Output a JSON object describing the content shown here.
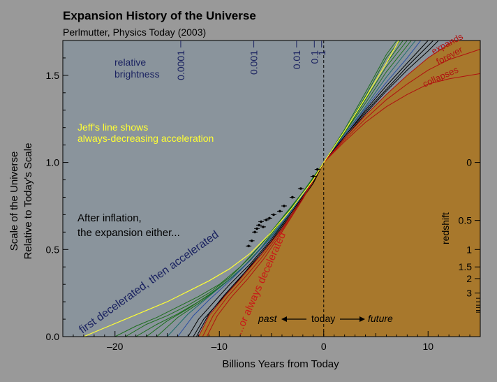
{
  "title": "Expansion History of the Universe",
  "subtitle": "Perlmutter, Physics Today (2003)",
  "colors": {
    "page_background": "#999999",
    "plot_background": "#8a949c",
    "decelerating_fill": "#a8782c",
    "accelerated_text": "#1a2260",
    "decelerated_text": "#c81818",
    "jeff_line": "#ffff33",
    "green": "#1c6e1c",
    "teal": "#1c6a6a",
    "blue": "#2a4ea0",
    "black": "#000000",
    "red": "#b01010"
  },
  "chart_data": {
    "type": "line",
    "xlabel": "Billions Years from Today",
    "ylabel": [
      "Scale of the Universe",
      "Relative to Today's Scale"
    ],
    "xlim": [
      -25,
      15
    ],
    "ylim": [
      0,
      1.7
    ],
    "x_ticks": [
      -20,
      -10,
      0,
      10
    ],
    "x_tick_labels": [
      "–20",
      "–10",
      "0",
      "10"
    ],
    "y_ticks": [
      0,
      0.5,
      1.0,
      1.5
    ],
    "y_tick_labels": [
      "0.0",
      "0.5",
      "1.0",
      "1.5"
    ],
    "today_marker_x": 0,
    "brightness": {
      "label": [
        "relative",
        "brightness"
      ],
      "ticks": [
        {
          "label": "0.0001",
          "x": -13.7
        },
        {
          "label": "0.001",
          "x": -6.7
        },
        {
          "label": "0.01",
          "x": -2.6
        },
        {
          "label": "0.1",
          "x": -0.9
        },
        {
          "label": "1",
          "x": -0.2
        }
      ]
    },
    "redshift": {
      "label": "redshift",
      "ticks": [
        {
          "label": "0",
          "y": 1.0
        },
        {
          "label": "0.5",
          "y": 0.667
        },
        {
          "label": "1",
          "y": 0.5
        },
        {
          "label": "1.5",
          "y": 0.4
        },
        {
          "label": "2",
          "y": 0.333
        },
        {
          "label": "3",
          "y": 0.25
        }
      ],
      "minor_ticks_y": [
        0.22,
        0.2,
        0.18,
        0.167,
        0.15,
        0.14
      ]
    },
    "series": [
      {
        "color_key": "green",
        "points": [
          [
            -20,
            0
          ],
          [
            -18,
            0.06
          ],
          [
            -16,
            0.11
          ],
          [
            -14,
            0.17
          ],
          [
            -12,
            0.23
          ],
          [
            -10,
            0.3
          ],
          [
            -8,
            0.4
          ],
          [
            -6,
            0.53
          ],
          [
            -4,
            0.68
          ],
          [
            -2,
            0.83
          ],
          [
            0,
            1.0
          ],
          [
            2,
            1.19
          ],
          [
            4,
            1.4
          ],
          [
            6,
            1.62
          ],
          [
            7,
            1.7
          ]
        ]
      },
      {
        "color_key": "green",
        "points": [
          [
            -19,
            0
          ],
          [
            -17,
            0.07
          ],
          [
            -15,
            0.12
          ],
          [
            -13,
            0.18
          ],
          [
            -11,
            0.25
          ],
          [
            -9,
            0.34
          ],
          [
            -7,
            0.46
          ],
          [
            -5,
            0.6
          ],
          [
            -3,
            0.75
          ],
          [
            -1,
            0.91
          ],
          [
            0,
            1.0
          ],
          [
            2,
            1.18
          ],
          [
            4,
            1.38
          ],
          [
            6,
            1.6
          ],
          [
            7.3,
            1.7
          ]
        ]
      },
      {
        "color_key": "green",
        "points": [
          [
            -18,
            0
          ],
          [
            -16,
            0.07
          ],
          [
            -14,
            0.13
          ],
          [
            -12,
            0.2
          ],
          [
            -10,
            0.28
          ],
          [
            -8,
            0.38
          ],
          [
            -6,
            0.51
          ],
          [
            -4,
            0.67
          ],
          [
            -2,
            0.82
          ],
          [
            0,
            1.0
          ],
          [
            2,
            1.18
          ],
          [
            4,
            1.37
          ],
          [
            6,
            1.57
          ],
          [
            7.6,
            1.7
          ]
        ]
      },
      {
        "color_key": "green",
        "points": [
          [
            -17,
            0
          ],
          [
            -15,
            0.09
          ],
          [
            -13,
            0.16
          ],
          [
            -11,
            0.24
          ],
          [
            -9,
            0.33
          ],
          [
            -7,
            0.44
          ],
          [
            -5,
            0.57
          ],
          [
            -3,
            0.72
          ],
          [
            -1,
            0.9
          ],
          [
            0,
            1.0
          ],
          [
            2,
            1.17
          ],
          [
            4,
            1.36
          ],
          [
            6,
            1.55
          ],
          [
            8,
            1.7
          ]
        ]
      },
      {
        "color_key": "green",
        "points": [
          [
            -16,
            0
          ],
          [
            -14,
            0.11
          ],
          [
            -12,
            0.19
          ],
          [
            -10,
            0.28
          ],
          [
            -8,
            0.38
          ],
          [
            -6,
            0.51
          ],
          [
            -4,
            0.65
          ],
          [
            -2,
            0.82
          ],
          [
            0,
            1.0
          ],
          [
            2,
            1.17
          ],
          [
            4,
            1.34
          ],
          [
            6,
            1.52
          ],
          [
            8.4,
            1.7
          ]
        ]
      },
      {
        "color_key": "teal",
        "points": [
          [
            -15,
            0
          ],
          [
            -13,
            0.13
          ],
          [
            -11,
            0.23
          ],
          [
            -9,
            0.33
          ],
          [
            -7,
            0.44
          ],
          [
            -5,
            0.58
          ],
          [
            -3,
            0.73
          ],
          [
            -1,
            0.9
          ],
          [
            0,
            1.0
          ],
          [
            2,
            1.16
          ],
          [
            4,
            1.32
          ],
          [
            6,
            1.49
          ],
          [
            8,
            1.64
          ],
          [
            8.8,
            1.7
          ]
        ]
      },
      {
        "color_key": "blue",
        "points": [
          [
            -14,
            0
          ],
          [
            -12.5,
            0.12
          ],
          [
            -11,
            0.21
          ],
          [
            -9,
            0.32
          ],
          [
            -7,
            0.44
          ],
          [
            -5,
            0.57
          ],
          [
            -3,
            0.73
          ],
          [
            -1,
            0.9
          ],
          [
            0,
            1.0
          ],
          [
            2,
            1.16
          ],
          [
            4,
            1.31
          ],
          [
            6,
            1.46
          ],
          [
            8,
            1.6
          ],
          [
            9.3,
            1.7
          ]
        ]
      },
      {
        "color_key": "black",
        "points": [
          [
            -13,
            0
          ],
          [
            -12,
            0.1
          ],
          [
            -10.5,
            0.2
          ],
          [
            -9,
            0.3
          ],
          [
            -7,
            0.42
          ],
          [
            -5,
            0.56
          ],
          [
            -3,
            0.72
          ],
          [
            -1,
            0.89
          ],
          [
            0,
            1.0
          ],
          [
            2,
            1.15
          ],
          [
            4,
            1.3
          ],
          [
            6,
            1.44
          ],
          [
            8,
            1.57
          ],
          [
            10,
            1.7
          ]
        ]
      },
      {
        "color_key": "black",
        "points": [
          [
            -12.5,
            0
          ],
          [
            -11.5,
            0.1
          ],
          [
            -10,
            0.2
          ],
          [
            -8.5,
            0.3
          ],
          [
            -7,
            0.41
          ],
          [
            -5,
            0.55
          ],
          [
            -3,
            0.71
          ],
          [
            -1,
            0.88
          ],
          [
            0,
            1.0
          ],
          [
            2,
            1.15
          ],
          [
            4,
            1.29
          ],
          [
            6,
            1.42
          ],
          [
            8,
            1.55
          ],
          [
            10,
            1.67
          ],
          [
            10.5,
            1.7
          ]
        ]
      },
      {
        "color_key": "black",
        "points": [
          [
            -12.2,
            0
          ],
          [
            -11,
            0.13
          ],
          [
            -9.5,
            0.24
          ],
          [
            -8,
            0.34
          ],
          [
            -6,
            0.47
          ],
          [
            -4,
            0.62
          ],
          [
            -2,
            0.8
          ],
          [
            0,
            1.0
          ],
          [
            2,
            1.14
          ],
          [
            4,
            1.28
          ],
          [
            6,
            1.41
          ],
          [
            8,
            1.53
          ],
          [
            10,
            1.64
          ],
          [
            11,
            1.7
          ]
        ]
      },
      {
        "color_key": "red",
        "points": [
          [
            -12,
            0
          ],
          [
            -11,
            0.12
          ],
          [
            -9.5,
            0.23
          ],
          [
            -8,
            0.33
          ],
          [
            -6,
            0.47
          ],
          [
            -4,
            0.62
          ],
          [
            -2,
            0.8
          ],
          [
            0,
            1.0
          ],
          [
            2,
            1.14
          ],
          [
            4,
            1.27
          ],
          [
            6,
            1.39
          ],
          [
            8,
            1.5
          ],
          [
            10,
            1.6
          ],
          [
            12,
            1.68
          ],
          [
            12.5,
            1.7
          ]
        ]
      },
      {
        "color_key": "red",
        "points": [
          [
            -11.6,
            0
          ],
          [
            -10.6,
            0.12
          ],
          [
            -9.2,
            0.23
          ],
          [
            -7.7,
            0.33
          ],
          [
            -6,
            0.45
          ],
          [
            -4,
            0.61
          ],
          [
            -2,
            0.79
          ],
          [
            0,
            1.0
          ],
          [
            2,
            1.13
          ],
          [
            4,
            1.25
          ],
          [
            6,
            1.36
          ],
          [
            8,
            1.45
          ],
          [
            10,
            1.53
          ],
          [
            12,
            1.59
          ],
          [
            14,
            1.63
          ],
          [
            15,
            1.65
          ]
        ]
      },
      {
        "color_key": "red",
        "points": [
          [
            -11.2,
            0
          ],
          [
            -10.2,
            0.12
          ],
          [
            -8.8,
            0.23
          ],
          [
            -7.3,
            0.33
          ],
          [
            -5.7,
            0.45
          ],
          [
            -4,
            0.6
          ],
          [
            -2,
            0.79
          ],
          [
            0,
            1.0
          ],
          [
            2,
            1.12
          ],
          [
            4,
            1.23
          ],
          [
            6,
            1.32
          ],
          [
            8,
            1.39
          ],
          [
            10,
            1.45
          ],
          [
            12,
            1.48
          ],
          [
            14,
            1.5
          ],
          [
            15,
            1.51
          ]
        ]
      },
      {
        "color_key": "jeff_line",
        "points": [
          [
            -23,
            0
          ],
          [
            -21,
            0.05
          ],
          [
            -19,
            0.1
          ],
          [
            -17,
            0.15
          ],
          [
            -15,
            0.2
          ],
          [
            -13,
            0.26
          ],
          [
            -11,
            0.32
          ],
          [
            -9,
            0.39
          ],
          [
            -7,
            0.48
          ],
          [
            -5,
            0.6
          ],
          [
            -3,
            0.74
          ],
          [
            -1,
            0.9
          ],
          [
            0,
            1.0
          ],
          [
            2,
            1.18
          ],
          [
            4,
            1.37
          ],
          [
            6,
            1.57
          ],
          [
            7.2,
            1.7
          ]
        ]
      }
    ],
    "data_points": [
      [
        -7.2,
        0.52
      ],
      [
        -6.9,
        0.55
      ],
      [
        -6.6,
        0.6
      ],
      [
        -6.4,
        0.62
      ],
      [
        -6.2,
        0.64
      ],
      [
        -6.0,
        0.66
      ],
      [
        -5.8,
        0.63
      ],
      [
        -5.5,
        0.67
      ],
      [
        -5.2,
        0.68
      ],
      [
        -4.8,
        0.7
      ],
      [
        -4.2,
        0.72
      ],
      [
        -3.8,
        0.75
      ],
      [
        -3.0,
        0.8
      ],
      [
        -2.2,
        0.85
      ],
      [
        -1.0,
        0.92
      ],
      [
        -0.6,
        0.96
      ]
    ]
  },
  "annotations": {
    "jeff": [
      "Jeff's line shows",
      "always-decreasing acceleration"
    ],
    "after_inflation": [
      "After inflation,",
      "the expansion either..."
    ],
    "accelerated": "first decelerated, then accelerated",
    "decelerated": "...or always decelerated",
    "expands": "expands",
    "forever": "forever",
    "collapses": "collapses",
    "past": "past",
    "today": "today",
    "future": "future"
  }
}
